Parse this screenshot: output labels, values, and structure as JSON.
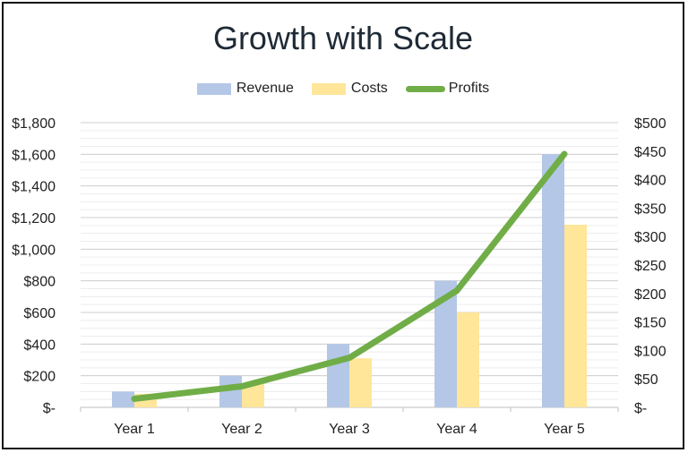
{
  "chart_data": {
    "type": "bar",
    "title": "Growth with Scale",
    "categories": [
      "Year 1",
      "Year 2",
      "Year 3",
      "Year 4",
      "Year 5"
    ],
    "series": [
      {
        "name": "Revenue",
        "type": "bar",
        "axis": "left",
        "color": "#b4c7e7",
        "values": [
          100,
          200,
          400,
          800,
          1600
        ]
      },
      {
        "name": "Costs",
        "type": "bar",
        "axis": "left",
        "color": "#ffe699",
        "values": [
          85,
          150,
          310,
          600,
          1155
        ]
      },
      {
        "name": "Profits",
        "type": "line",
        "axis": "right",
        "color": "#70ad47",
        "values": [
          15,
          37,
          87,
          205,
          445
        ]
      }
    ],
    "y_left": {
      "min": 0,
      "max": 1800,
      "ticks": [
        "$-",
        "$200",
        "$400",
        "$600",
        "$800",
        "$1,000",
        "$1,200",
        "$1,400",
        "$1,600",
        "$1,800"
      ]
    },
    "y_right": {
      "min": 0,
      "max": 500,
      "ticks": [
        "$-",
        "$50",
        "$100",
        "$150",
        "$200",
        "$250",
        "$300",
        "$350",
        "$400",
        "$450",
        "$500"
      ]
    },
    "grid": true,
    "legend_position": "top"
  }
}
